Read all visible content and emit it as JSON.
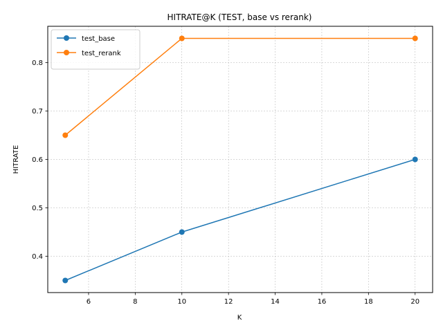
{
  "chart_data": {
    "type": "line",
    "title": "HITRATE@K (TEST, base vs rerank)",
    "xlabel": "K",
    "ylabel": "HITRATE",
    "x": [
      5,
      10,
      20
    ],
    "xlim": [
      4.25,
      20.75
    ],
    "ylim": [
      0.325,
      0.875
    ],
    "xticks": [
      6,
      8,
      10,
      12,
      14,
      16,
      18,
      20
    ],
    "yticks": [
      0.4,
      0.5,
      0.6,
      0.7,
      0.8
    ],
    "grid": true,
    "legend_position": "top-left",
    "series": [
      {
        "name": "test_base",
        "values": [
          0.35,
          0.45,
          0.6
        ],
        "color": "#1f77b4",
        "marker": "circle"
      },
      {
        "name": "test_rerank",
        "values": [
          0.65,
          0.85,
          0.85
        ],
        "color": "#ff7f0e",
        "marker": "circle"
      }
    ]
  }
}
